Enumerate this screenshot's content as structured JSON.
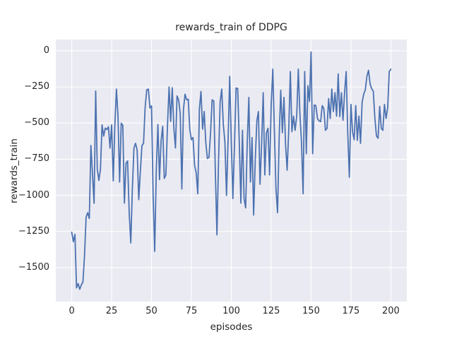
{
  "chart_data": {
    "type": "line",
    "title": "rewards_train of DDPG",
    "xlabel": "episodes",
    "ylabel": "rewards_train",
    "x_ticks": [
      0,
      25,
      50,
      75,
      100,
      125,
      150,
      175,
      200
    ],
    "y_ticks": [
      0,
      -250,
      -500,
      -750,
      -1000,
      -1250,
      -1500
    ],
    "xlim": [
      -10,
      210
    ],
    "ylim": [
      -1735,
      78
    ],
    "grid": true,
    "legend": false,
    "line_color": "#4c72b0",
    "plot_background_color": "#eaeaf2",
    "gridline_color": "#ffffff",
    "x": [
      0,
      1,
      2,
      3,
      4,
      5,
      6,
      7,
      8,
      9,
      10,
      11,
      12,
      13,
      14,
      15,
      16,
      17,
      18,
      19,
      20,
      21,
      22,
      23,
      24,
      25,
      26,
      27,
      28,
      29,
      30,
      31,
      32,
      33,
      34,
      35,
      36,
      37,
      38,
      39,
      40,
      41,
      42,
      43,
      44,
      45,
      46,
      47,
      48,
      49,
      50,
      51,
      52,
      53,
      54,
      55,
      56,
      57,
      58,
      59,
      60,
      61,
      62,
      63,
      64,
      65,
      66,
      67,
      68,
      69,
      70,
      71,
      72,
      73,
      74,
      75,
      76,
      77,
      78,
      79,
      80,
      81,
      82,
      83,
      84,
      85,
      86,
      87,
      88,
      89,
      90,
      91,
      92,
      93,
      94,
      95,
      96,
      97,
      98,
      99,
      100,
      101,
      102,
      103,
      104,
      105,
      106,
      107,
      108,
      109,
      110,
      111,
      112,
      113,
      114,
      115,
      116,
      117,
      118,
      119,
      120,
      121,
      122,
      123,
      124,
      125,
      126,
      127,
      128,
      129,
      130,
      131,
      132,
      133,
      134,
      135,
      136,
      137,
      138,
      139,
      140,
      141,
      142,
      143,
      144,
      145,
      146,
      147,
      148,
      149,
      150,
      151,
      152,
      153,
      154,
      155,
      156,
      157,
      158,
      159,
      160,
      161,
      162,
      163,
      164,
      165,
      166,
      167,
      168,
      169,
      170,
      171,
      172,
      173,
      174,
      175,
      176,
      177,
      178,
      179,
      180,
      181,
      182,
      183,
      184,
      185,
      186,
      187,
      188,
      189,
      190,
      191,
      192,
      193,
      194,
      195,
      196,
      197,
      198,
      199,
      200
    ],
    "values": [
      -1255,
      -1320,
      -1270,
      -1640,
      -1610,
      -1650,
      -1620,
      -1600,
      -1420,
      -1150,
      -1120,
      -1160,
      -655,
      -851,
      -1055,
      -278,
      -818,
      -897,
      -818,
      -512,
      -590,
      -535,
      -545,
      -525,
      -673,
      -512,
      -900,
      -521,
      -265,
      -452,
      -908,
      -501,
      -515,
      -1054,
      -778,
      -762,
      -1120,
      -1330,
      -950,
      -672,
      -640,
      -688,
      -1030,
      -834,
      -656,
      -640,
      -390,
      -270,
      -265,
      -395,
      -381,
      -1000,
      -1388,
      -818,
      -510,
      -891,
      -623,
      -522,
      -883,
      -859,
      -517,
      -250,
      -488,
      -255,
      -533,
      -672,
      -312,
      -341,
      -437,
      -956,
      -409,
      -300,
      -339,
      -335,
      -545,
      -615,
      -600,
      -794,
      -843,
      -989,
      -403,
      -281,
      -542,
      -420,
      -631,
      -745,
      -738,
      -570,
      -339,
      -347,
      -834,
      -1274,
      -762,
      -355,
      -265,
      -510,
      -631,
      -1000,
      -615,
      -176,
      -631,
      -1022,
      -647,
      -257,
      -260,
      -631,
      -1054,
      -550,
      -1022,
      -1087,
      -631,
      -322,
      -908,
      -600,
      -1136,
      -762,
      -485,
      -420,
      -923,
      -647,
      -290,
      -859,
      -567,
      -536,
      -859,
      -371,
      -127,
      -550,
      -956,
      -1120,
      -600,
      -273,
      -567,
      -322,
      -647,
      -826,
      -550,
      -143,
      -560,
      -452,
      -550,
      -452,
      -127,
      -437,
      -631,
      -989,
      -143,
      -712,
      -241,
      -350,
      -8,
      -712,
      -375,
      -379,
      -468,
      -485,
      -490,
      -379,
      -400,
      -550,
      -536,
      -330,
      -468,
      -265,
      -420,
      -290,
      -452,
      -160,
      -455,
      -290,
      -480,
      -290,
      -143,
      -570,
      -875,
      -371,
      -560,
      -615,
      -379,
      -620,
      -452,
      -640,
      -355,
      -300,
      -269,
      -176,
      -135,
      -230,
      -262,
      -280,
      -468,
      -590,
      -605,
      -385,
      -536,
      -550,
      -371,
      -468,
      -395,
      -143,
      -127
    ]
  }
}
